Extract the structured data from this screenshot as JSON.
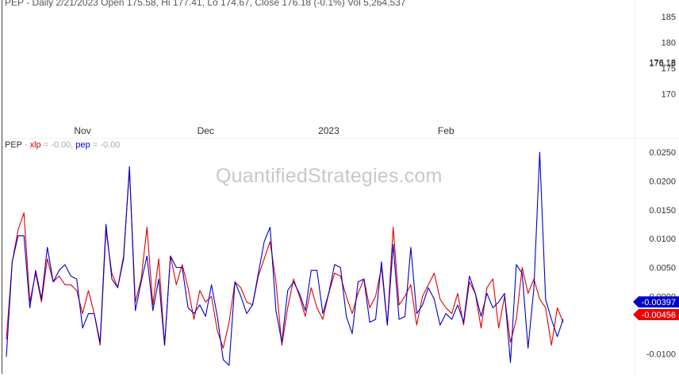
{
  "header": {
    "text": "PEP - Daily 2/21/2023 Open 175.58, Hi 177.41, Lo 174.67, Close 176.18 (-0.1%) Vol 5,264,537"
  },
  "watermark": "QuantifiedStrategies.com",
  "colors": {
    "xlp": "#dd0000",
    "pep": "#0000cc",
    "background": "#ffffff",
    "last_pep_tag": "#0000cc",
    "last_xlp_tag": "#ee0000"
  },
  "chart_data": [
    {
      "type": "line",
      "name": "price-panel",
      "title": "PEP - Daily 2/21/2023 Open 175.58, Hi 177.41, Lo 174.67, Close 176.18 (-0.1%) Vol 5,264,537",
      "ylim": [
        167,
        187
      ],
      "yticks": [
        "185",
        "180",
        "175",
        "170"
      ],
      "overlapping_labels": [
        "176.18",
        "176.18"
      ],
      "series": []
    },
    {
      "type": "line",
      "name": "returns-panel",
      "legend": {
        "ticker": "PEP",
        "sep": " - ",
        "xlp_label": "xlp",
        "xlp_value": "= -0.00,",
        "pep_label": "pep",
        "pep_value": "= -0.00"
      },
      "x_ticks": [
        {
          "label": "Nov",
          "index": 13
        },
        {
          "label": "Dec",
          "index": 34
        },
        {
          "label": "2023",
          "index": 55
        },
        {
          "label": "Feb",
          "index": 75
        }
      ],
      "ylim": [
        -0.0135,
        0.0275
      ],
      "yticks": [
        {
          "value": 0.025,
          "label": "0.0250"
        },
        {
          "value": 0.02,
          "label": "0.0200"
        },
        {
          "value": 0.015,
          "label": "0.0150"
        },
        {
          "value": 0.01,
          "label": "0.0100"
        },
        {
          "value": 0.005,
          "label": "0.0050"
        },
        {
          "value": 0.0,
          "label": "0.0000"
        },
        {
          "value": -0.01,
          "label": "-0.0100"
        }
      ],
      "last_value_tags": [
        {
          "series": "pep",
          "label": "-0.00397"
        },
        {
          "series": "xlp",
          "label": "-0.00456"
        }
      ],
      "series": [
        {
          "name": "xlp",
          "values": [
            -0.0075,
            0.006,
            0.0115,
            0.0145,
            -0.001,
            0.004,
            -0.001,
            0.0065,
            0.0025,
            0.0035,
            0.002,
            0.002,
            0.001,
            -0.003,
            0.001,
            -0.003,
            -0.0085,
            0.0115,
            0.004,
            0.0015,
            0.007,
            0.022,
            -0.001,
            0.003,
            0.012,
            -0.0015,
            0.0065,
            -0.0085,
            0.007,
            0.002,
            0.0055,
            0.0015,
            -0.004,
            0.001,
            -0.001,
            0.0,
            -0.006,
            -0.009,
            -0.0045,
            0.0025,
            0.0015,
            -0.001,
            -0.0015,
            0.0035,
            0.0065,
            0.0095,
            0.0025,
            -0.0085,
            -0.002,
            0.003,
            0.0,
            -0.0035,
            0.0015,
            -0.002,
            -0.004,
            0.0005,
            0.004,
            0.0035,
            0.0,
            -0.003,
            0.0005,
            0.003,
            -0.002,
            0.0,
            0.005,
            -0.005,
            0.012,
            -0.0015,
            0.0,
            0.002,
            -0.005,
            0.0,
            0.002,
            0.004,
            -0.0005,
            -0.002,
            -0.003,
            0.0005,
            -0.005,
            0.0025,
            0.0005,
            -0.0055,
            0.0015,
            0.003,
            -0.0055,
            0.0,
            -0.008,
            -0.004,
            0.005,
            0.0005,
            0.003,
            -0.0005,
            -0.002,
            -0.0085,
            -0.002,
            -0.00456
          ]
        },
        {
          "name": "pep",
          "values": [
            -0.0105,
            0.006,
            0.0105,
            0.0105,
            -0.002,
            0.0045,
            -0.0005,
            0.0085,
            0.0025,
            0.0045,
            0.0055,
            0.0035,
            0.003,
            -0.0055,
            -0.003,
            -0.003,
            -0.008,
            0.0125,
            0.003,
            0.0015,
            0.0065,
            0.0225,
            -0.0025,
            0.0025,
            0.007,
            -0.0025,
            0.003,
            -0.0085,
            0.007,
            0.005,
            0.005,
            -0.002,
            -0.003,
            -0.0015,
            -0.0035,
            0.002,
            -0.0035,
            -0.011,
            -0.012,
            0.0025,
            0.0,
            -0.003,
            -0.0015,
            0.004,
            0.0095,
            0.012,
            -0.0025,
            -0.008,
            0.001,
            0.0025,
            0.0005,
            -0.0025,
            0.0045,
            0.0045,
            -0.003,
            0.0005,
            0.0055,
            0.005,
            -0.0035,
            -0.0065,
            0.0025,
            0.003,
            -0.0045,
            -0.004,
            0.006,
            -0.005,
            0.009,
            -0.004,
            -0.0035,
            0.0085,
            -0.003,
            -0.0015,
            0.0015,
            -0.0005,
            -0.005,
            -0.003,
            -0.004,
            -0.0015,
            -0.0045,
            0.0035,
            0.0005,
            -0.0035,
            0.0005,
            -0.002,
            -0.001,
            0.0005,
            -0.0115,
            0.0055,
            0.004,
            -0.009,
            0.0015,
            0.025,
            -0.0005,
            -0.004,
            -0.007,
            -0.00397
          ]
        }
      ]
    }
  ]
}
